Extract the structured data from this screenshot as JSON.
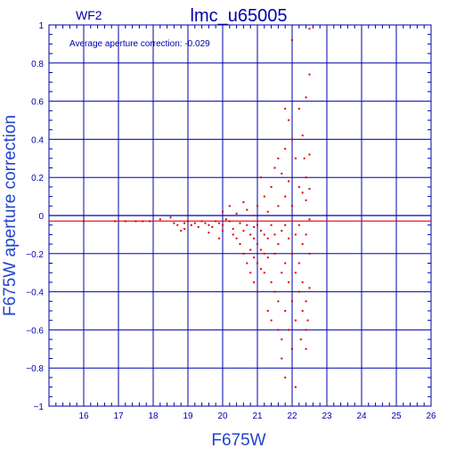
{
  "chart_data": {
    "type": "scatter",
    "panel_label": "WF2",
    "title": "lmc_u65005",
    "annotation": "Average aperture correction: -0.029",
    "xlabel": "F675W",
    "ylabel": "F675W aperture correction",
    "xlim": [
      15,
      26
    ],
    "ylim": [
      -1,
      1
    ],
    "x_ticks": [
      16,
      17,
      18,
      19,
      20,
      21,
      22,
      23,
      24,
      25,
      26
    ],
    "x_tick_labels": [
      "16",
      "17",
      "18",
      "19",
      "20",
      "21",
      "22",
      "23",
      "24",
      "25",
      "26"
    ],
    "y_ticks": [
      -1,
      -0.8,
      -0.6,
      -0.4,
      -0.2,
      0,
      0.2,
      0.4,
      0.6,
      0.8,
      1
    ],
    "y_tick_labels": [
      "−1",
      "−0.8",
      "−0.6",
      "−0.4",
      "−0.2",
      "0",
      "0.2",
      "0.4",
      "0.6",
      "0.8",
      "1"
    ],
    "grid": true,
    "reference_lines": [
      {
        "y": 0,
        "color": "#0000aa"
      },
      {
        "y": -0.029,
        "color": "#dd0000"
      }
    ],
    "colors": {
      "axes": "#0000aa",
      "points": "#dd0000",
      "text": "#0000aa"
    },
    "points": [
      [
        16.0,
        -0.03
      ],
      [
        16.9,
        -0.03
      ],
      [
        17.2,
        -0.03
      ],
      [
        17.5,
        -0.03
      ],
      [
        17.7,
        -0.03
      ],
      [
        17.9,
        -0.03
      ],
      [
        18.2,
        -0.02
      ],
      [
        18.5,
        -0.01
      ],
      [
        18.6,
        -0.04
      ],
      [
        18.7,
        -0.05
      ],
      [
        18.8,
        -0.08
      ],
      [
        18.9,
        -0.04
      ],
      [
        19.0,
        -0.03
      ],
      [
        19.1,
        -0.05
      ],
      [
        19.2,
        -0.04
      ],
      [
        19.3,
        -0.06
      ],
      [
        19.4,
        -0.03
      ],
      [
        19.5,
        -0.04
      ],
      [
        19.6,
        -0.05
      ],
      [
        19.7,
        -0.06
      ],
      [
        19.8,
        -0.03
      ],
      [
        19.9,
        -0.04
      ],
      [
        20.0,
        -0.05
      ],
      [
        20.0,
        -0.08
      ],
      [
        18.9,
        -0.07
      ],
      [
        19.6,
        -0.09
      ],
      [
        19.9,
        -0.12
      ],
      [
        20.0,
        0.02
      ],
      [
        20.1,
        -0.02
      ],
      [
        20.2,
        0.05
      ],
      [
        20.2,
        -0.03
      ],
      [
        20.3,
        -0.07
      ],
      [
        20.3,
        -0.1
      ],
      [
        20.4,
        -0.12
      ],
      [
        20.4,
        0.01
      ],
      [
        20.5,
        -0.04
      ],
      [
        20.5,
        -0.15
      ],
      [
        20.6,
        -0.08
      ],
      [
        20.6,
        -0.2
      ],
      [
        20.6,
        0.07
      ],
      [
        20.7,
        -0.05
      ],
      [
        20.7,
        -0.25
      ],
      [
        20.7,
        0.03
      ],
      [
        20.8,
        -0.1
      ],
      [
        20.8,
        -0.18
      ],
      [
        20.8,
        -0.3
      ],
      [
        20.9,
        -0.06
      ],
      [
        20.9,
        -0.12
      ],
      [
        20.9,
        -0.22
      ],
      [
        20.9,
        0.0
      ],
      [
        20.9,
        -0.35
      ],
      [
        21.0,
        -0.05
      ],
      [
        21.0,
        -0.15
      ],
      [
        21.0,
        -0.25
      ],
      [
        21.0,
        0.05
      ],
      [
        21.0,
        -0.4
      ],
      [
        21.1,
        -0.08
      ],
      [
        21.1,
        -0.18
      ],
      [
        21.1,
        -0.28
      ],
      [
        21.1,
        0.2
      ],
      [
        21.2,
        -0.1
      ],
      [
        21.2,
        0.1
      ],
      [
        21.2,
        -0.3
      ],
      [
        21.2,
        -0.2
      ],
      [
        21.3,
        0.02
      ],
      [
        21.3,
        -0.12
      ],
      [
        21.3,
        -0.22
      ],
      [
        21.3,
        -0.5
      ],
      [
        21.4,
        0.15
      ],
      [
        21.4,
        -0.05
      ],
      [
        21.4,
        -0.35
      ],
      [
        21.4,
        -0.55
      ],
      [
        21.5,
        0.25
      ],
      [
        21.5,
        -0.1
      ],
      [
        21.5,
        -0.2
      ],
      [
        21.5,
        -0.4
      ],
      [
        21.6,
        0.3
      ],
      [
        21.6,
        0.05
      ],
      [
        21.6,
        -0.15
      ],
      [
        21.6,
        -0.45
      ],
      [
        21.6,
        -0.6
      ],
      [
        21.7,
        0.22
      ],
      [
        21.7,
        -0.08
      ],
      [
        21.7,
        -0.3
      ],
      [
        21.7,
        -0.65
      ],
      [
        21.7,
        -0.75
      ],
      [
        21.8,
        0.56
      ],
      [
        21.8,
        0.35
      ],
      [
        21.8,
        0.1
      ],
      [
        21.8,
        -0.05
      ],
      [
        21.8,
        -0.25
      ],
      [
        21.8,
        -0.5
      ],
      [
        21.8,
        -0.85
      ],
      [
        21.9,
        0.5
      ],
      [
        21.9,
        0.18
      ],
      [
        21.9,
        -0.12
      ],
      [
        21.9,
        -0.35
      ],
      [
        21.9,
        -0.6
      ],
      [
        22.0,
        0.92
      ],
      [
        22.0,
        0.4
      ],
      [
        22.0,
        0.05
      ],
      [
        22.0,
        -0.2
      ],
      [
        22.0,
        -0.45
      ],
      [
        22.0,
        -0.7
      ],
      [
        22.1,
        0.3
      ],
      [
        22.1,
        -0.1
      ],
      [
        22.1,
        -0.3
      ],
      [
        22.1,
        -0.55
      ],
      [
        22.1,
        -0.9
      ],
      [
        22.2,
        0.56
      ],
      [
        22.2,
        0.15
      ],
      [
        22.2,
        -0.05
      ],
      [
        22.2,
        -0.25
      ],
      [
        22.2,
        -0.4
      ],
      [
        22.3,
        0.42
      ],
      [
        22.3,
        0.12
      ],
      [
        22.3,
        -0.15
      ],
      [
        22.3,
        -0.35
      ],
      [
        22.3,
        -0.5
      ],
      [
        22.4,
        0.2
      ],
      [
        22.4,
        0.08
      ],
      [
        22.4,
        -0.1
      ],
      [
        22.4,
        -0.45
      ],
      [
        22.4,
        -0.6
      ],
      [
        22.4,
        -0.7
      ],
      [
        22.5,
        0.98
      ],
      [
        22.5,
        0.74
      ],
      [
        22.5,
        0.32
      ],
      [
        22.5,
        0.14
      ],
      [
        22.5,
        -0.02
      ],
      [
        22.5,
        -0.2
      ],
      [
        22.5,
        -0.38
      ],
      [
        22.4,
        0.62
      ],
      [
        22.45,
        -0.55
      ],
      [
        22.35,
        0.3
      ],
      [
        22.25,
        -0.65
      ]
    ]
  }
}
